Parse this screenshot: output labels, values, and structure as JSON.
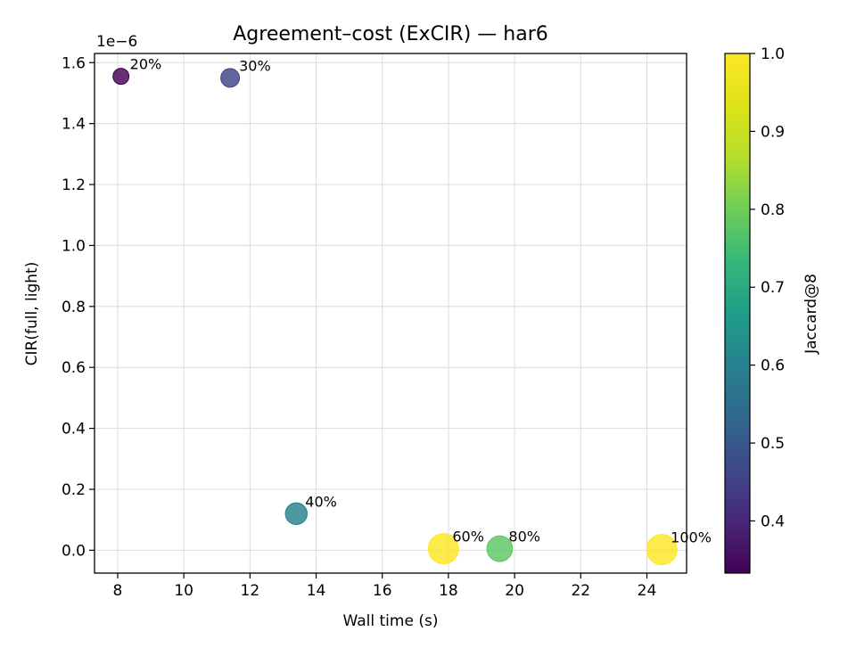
{
  "chart_data": {
    "type": "scatter",
    "title": "Agreement–cost (ExCIR) — har6",
    "xlabel": "Wall time (s)",
    "ylabel": "CIR(full, light)",
    "y_offset_label": "1e−6",
    "xlim": [
      7.3,
      25.2
    ],
    "ylim": [
      -0.075,
      1.63
    ],
    "x_ticks": [
      8,
      10,
      12,
      14,
      16,
      18,
      20,
      22,
      24
    ],
    "y_ticks": [
      0.0,
      0.2,
      0.4,
      0.6,
      0.8,
      1.0,
      1.2,
      1.4,
      1.6
    ],
    "grid": true,
    "points": [
      {
        "x": 8.1,
        "y": 1.555,
        "label": "20%",
        "jaccard": 0.333
      },
      {
        "x": 11.4,
        "y": 1.55,
        "label": "30%",
        "jaccard": 0.455
      },
      {
        "x": 13.4,
        "y": 0.12,
        "label": "40%",
        "jaccard": 0.6
      },
      {
        "x": 17.85,
        "y": 0.005,
        "label": "60%",
        "jaccard": 1.0
      },
      {
        "x": 19.55,
        "y": 0.005,
        "label": "80%",
        "jaccard": 0.778
      },
      {
        "x": 24.45,
        "y": 0.002,
        "label": "100%",
        "jaccard": 1.0
      }
    ],
    "colorbar": {
      "label": "Jaccard@8",
      "colormap": "viridis",
      "range": [
        0.333,
        1.0
      ],
      "ticks": [
        0.4,
        0.5,
        0.6,
        0.7,
        0.8,
        0.9,
        1.0
      ]
    }
  }
}
